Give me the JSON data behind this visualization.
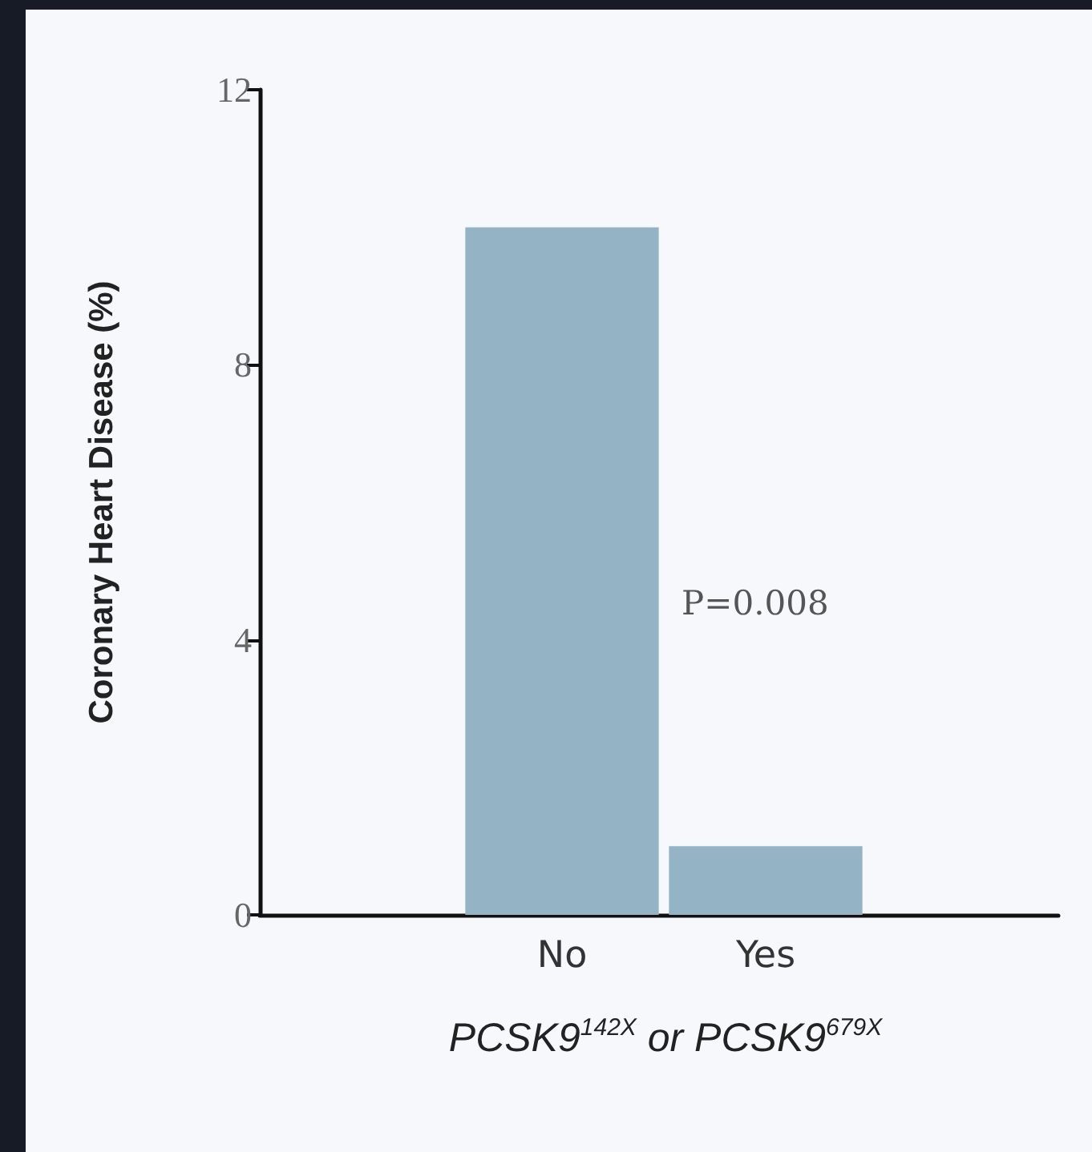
{
  "chart_data": {
    "type": "bar",
    "ylabel": "Coronary Heart Disease (%)",
    "xlabel": "PCSK9$^{142X}$ or PCSK9$^{679X}$",
    "categories": [
      "No",
      "Yes"
    ],
    "values": [
      10,
      1
    ],
    "color": "#94b4c5",
    "ylim": [
      0,
      12
    ],
    "yticks": [
      0,
      4,
      8,
      12
    ],
    "annotations": [
      "P=0.008"
    ]
  }
}
